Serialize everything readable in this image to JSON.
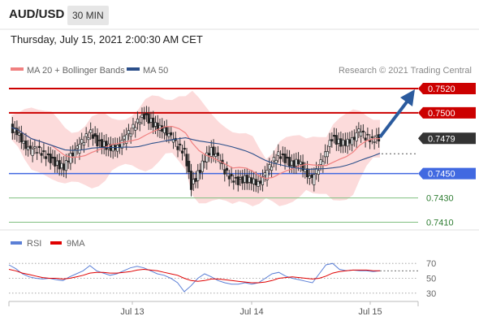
{
  "header": {
    "symbol": "AUD/USD",
    "interval": "30 MIN"
  },
  "datetime": "Thursday, July 15, 2021 2:00:30 AM CET",
  "legend": {
    "ma20": {
      "label": "MA 20 + Bollinger Bands",
      "color": "#f08080"
    },
    "ma50": {
      "label": "MA 50",
      "color": "#2b4f8a"
    },
    "credit": "Research © 2021 Trading Central"
  },
  "rsi_legend": {
    "rsi": {
      "label": "RSI",
      "color": "#5b7fd6"
    },
    "ma9": {
      "label": "9MA",
      "color": "#e00000"
    }
  },
  "colors": {
    "resistance": "#cc0000",
    "current": "#333333",
    "support_pivot": "#4169e1",
    "support": "#7fbf7f",
    "support_text": "#2e7d32",
    "arrow": "#2b5b9e",
    "band_fill": "#fbd5d5"
  },
  "chart_data": {
    "type": "candlestick",
    "y_range": [
      0.7407,
      0.7528
    ],
    "x_ticks": [
      "Jul 13",
      "Jul 14",
      "Jul 15"
    ],
    "levels": [
      {
        "value": 0.752,
        "label": "0.7520",
        "kind": "resistance"
      },
      {
        "value": 0.75,
        "label": "0.7500",
        "kind": "resistance"
      },
      {
        "value": 0.7479,
        "label": "0.7479",
        "kind": "current"
      },
      {
        "value": 0.745,
        "label": "0.7450",
        "kind": "pivot"
      },
      {
        "value": 0.743,
        "label": "0.7430",
        "kind": "support"
      },
      {
        "value": 0.741,
        "label": "0.7410",
        "kind": "support"
      }
    ],
    "price_path": [
      0.7488,
      0.7484,
      0.7475,
      0.7468,
      0.747,
      0.7466,
      0.7462,
      0.7458,
      0.7455,
      0.7465,
      0.747,
      0.7478,
      0.7484,
      0.7476,
      0.7474,
      0.7471,
      0.7472,
      0.7478,
      0.7485,
      0.7493,
      0.7498,
      0.7493,
      0.7488,
      0.7486,
      0.7479,
      0.7472,
      0.7468,
      0.744,
      0.745,
      0.7462,
      0.747,
      0.7462,
      0.7452,
      0.7446,
      0.7444,
      0.7446,
      0.7444,
      0.7442,
      0.7448,
      0.7458,
      0.7466,
      0.7462,
      0.7458,
      0.746,
      0.7452,
      0.7444,
      0.7455,
      0.7466,
      0.748,
      0.7476,
      0.7475,
      0.7478,
      0.7484,
      0.748,
      0.7478,
      0.748
    ],
    "rsi_axis": {
      "ticks": [
        70,
        50,
        30
      ],
      "range": [
        20,
        80
      ]
    },
    "rsi_path": [
      68,
      63,
      56,
      52,
      50,
      49,
      50,
      48,
      47,
      52,
      56,
      60,
      67,
      60,
      57,
      54,
      56,
      60,
      64,
      66,
      64,
      60,
      56,
      54,
      50,
      44,
      32,
      40,
      50,
      56,
      52,
      47,
      44,
      42,
      42,
      44,
      42,
      44,
      50,
      56,
      58,
      53,
      50,
      48,
      46,
      44,
      56,
      68,
      70,
      62,
      60,
      61,
      60,
      60,
      59,
      60
    ],
    "rsi_ma_path": [
      62,
      60,
      57,
      55,
      53,
      51,
      50,
      50,
      49,
      50,
      52,
      54,
      57,
      58,
      58,
      57,
      57,
      58,
      59,
      61,
      62,
      61,
      60,
      58,
      56,
      54,
      50,
      47,
      46,
      47,
      49,
      49,
      48,
      47,
      46,
      45,
      44,
      44,
      45,
      47,
      50,
      51,
      52,
      51,
      50,
      49,
      50,
      53,
      57,
      59,
      60,
      61,
      61,
      61,
      60,
      60
    ]
  }
}
